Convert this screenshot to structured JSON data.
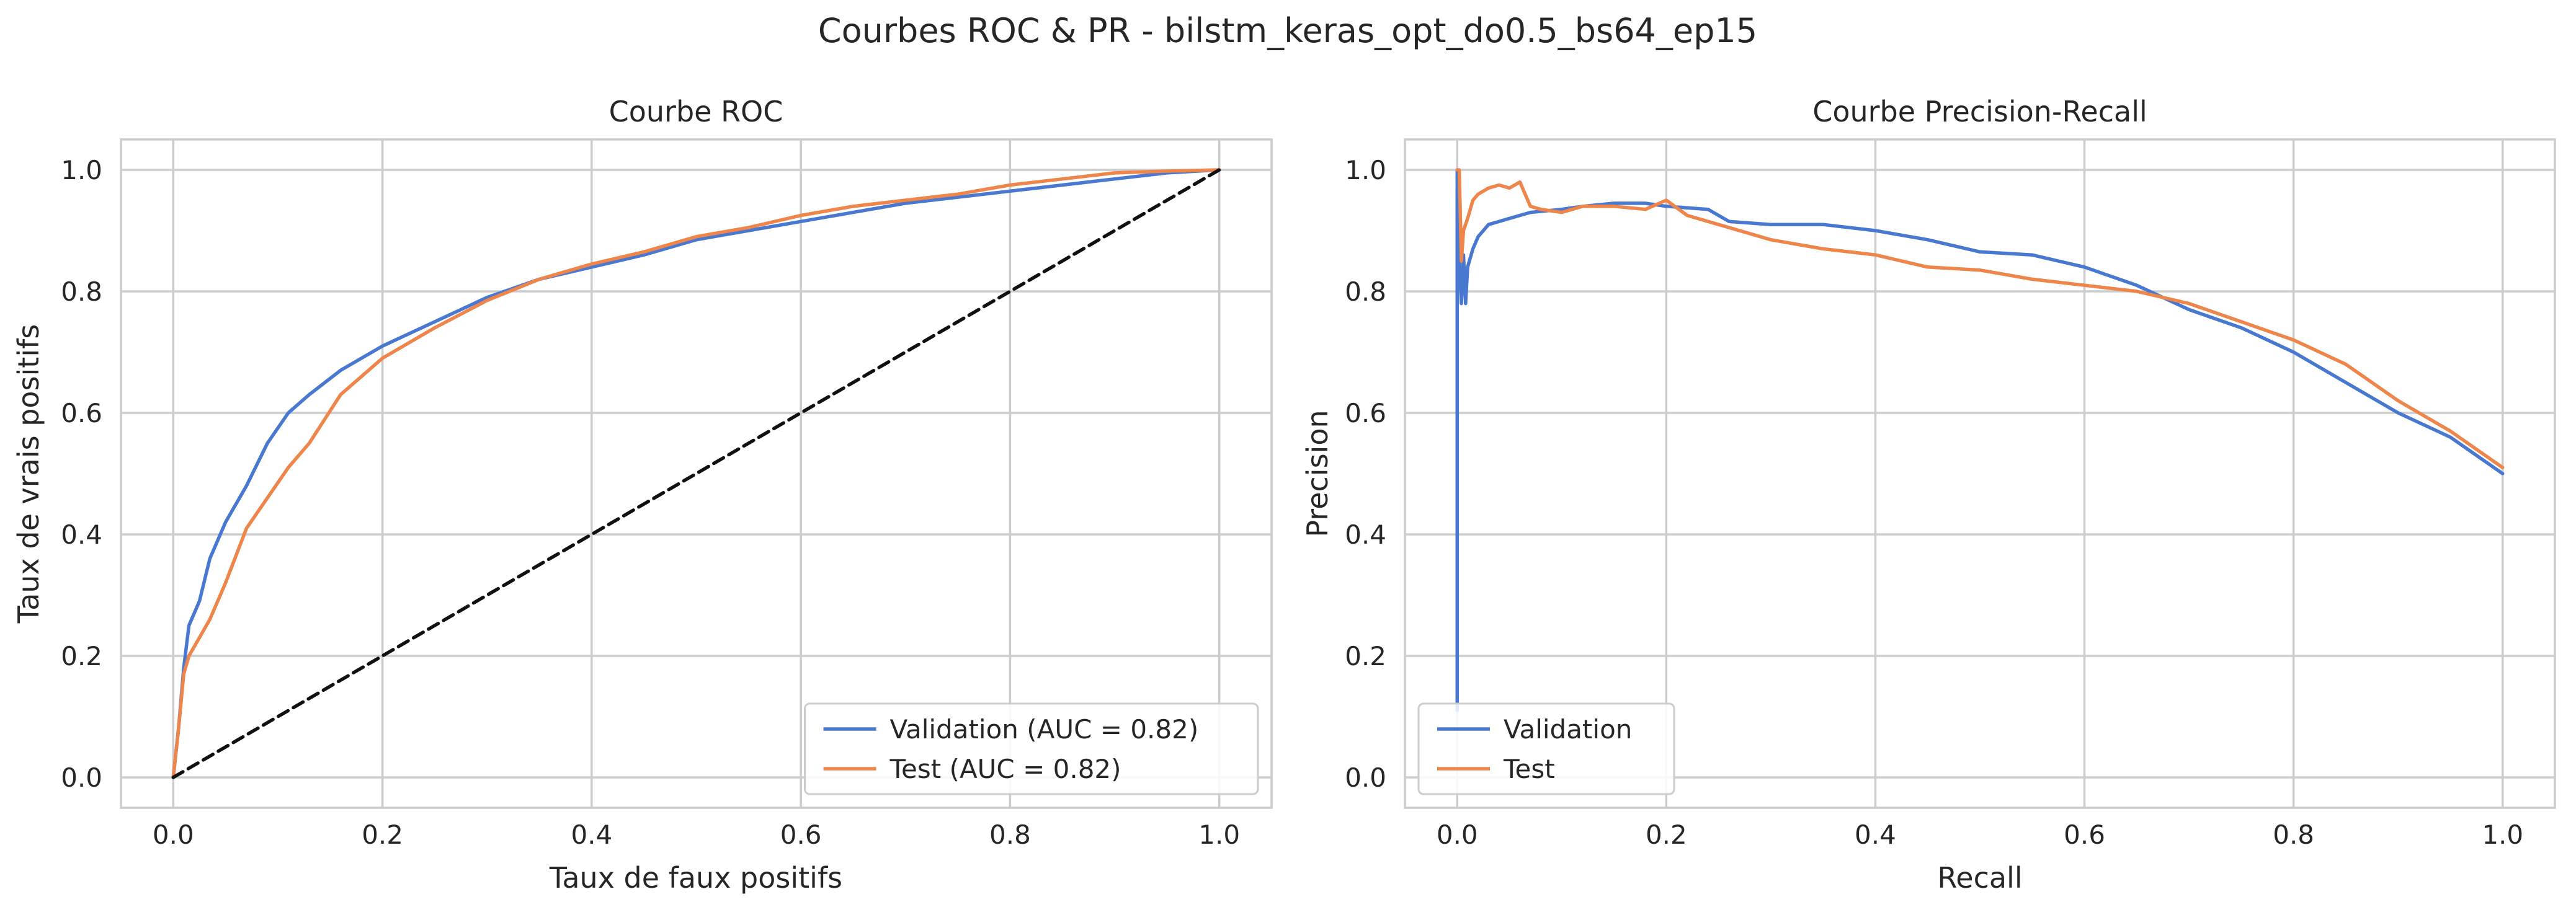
{
  "figure": {
    "suptitle": "Courbes ROC & PR - bilstm_keras_opt_do0.5_bs64_ep15"
  },
  "colors": {
    "validation": "#4878d0",
    "test": "#ee854a",
    "diagonal": "#111111",
    "grid": "#cccccc",
    "text": "#262626"
  },
  "chart_data": [
    {
      "type": "line",
      "title": "Courbe ROC",
      "xlabel": "Taux de faux positifs",
      "ylabel": "Taux de vrais positifs",
      "xlim": [
        -0.05,
        1.05
      ],
      "ylim": [
        -0.05,
        1.05
      ],
      "xticks": [
        0.0,
        0.2,
        0.4,
        0.6,
        0.8,
        1.0
      ],
      "yticks": [
        0.0,
        0.2,
        0.4,
        0.6,
        0.8,
        1.0
      ],
      "xtick_labels": [
        "0.0",
        "0.2",
        "0.4",
        "0.6",
        "0.8",
        "1.0"
      ],
      "ytick_labels": [
        "0.0",
        "0.2",
        "0.4",
        "0.6",
        "0.8",
        "1.0"
      ],
      "grid": true,
      "legend_position": "lower-right",
      "series": [
        {
          "name": "Validation (AUC = 0.82)",
          "color": "#4878d0",
          "x": [
            0.0,
            0.005,
            0.01,
            0.015,
            0.025,
            0.035,
            0.05,
            0.07,
            0.09,
            0.11,
            0.13,
            0.16,
            0.2,
            0.25,
            0.3,
            0.35,
            0.4,
            0.45,
            0.5,
            0.55,
            0.6,
            0.65,
            0.7,
            0.75,
            0.8,
            0.85,
            0.9,
            0.95,
            1.0
          ],
          "y": [
            0.0,
            0.08,
            0.18,
            0.25,
            0.29,
            0.36,
            0.42,
            0.48,
            0.55,
            0.6,
            0.63,
            0.67,
            0.71,
            0.75,
            0.79,
            0.82,
            0.84,
            0.86,
            0.885,
            0.9,
            0.915,
            0.93,
            0.945,
            0.955,
            0.965,
            0.975,
            0.985,
            0.995,
            1.0
          ]
        },
        {
          "name": "Test (AUC = 0.82)",
          "color": "#ee854a",
          "x": [
            0.0,
            0.005,
            0.01,
            0.015,
            0.025,
            0.035,
            0.05,
            0.07,
            0.09,
            0.11,
            0.13,
            0.16,
            0.2,
            0.25,
            0.3,
            0.35,
            0.4,
            0.45,
            0.5,
            0.55,
            0.6,
            0.65,
            0.7,
            0.75,
            0.8,
            0.85,
            0.9,
            0.95,
            1.0
          ],
          "y": [
            0.0,
            0.08,
            0.17,
            0.2,
            0.23,
            0.26,
            0.32,
            0.41,
            0.46,
            0.51,
            0.55,
            0.63,
            0.69,
            0.74,
            0.785,
            0.82,
            0.845,
            0.865,
            0.89,
            0.905,
            0.925,
            0.94,
            0.95,
            0.96,
            0.975,
            0.985,
            0.995,
            0.998,
            1.0
          ]
        },
        {
          "name": "",
          "color": "#111111",
          "dashed": true,
          "x": [
            0.0,
            1.0
          ],
          "y": [
            0.0,
            1.0
          ]
        }
      ]
    },
    {
      "type": "line",
      "title": "Courbe Precision-Recall",
      "xlabel": "Recall",
      "ylabel": "Precision",
      "xlim": [
        -0.05,
        1.05
      ],
      "ylim": [
        -0.05,
        1.05
      ],
      "xticks": [
        0.0,
        0.2,
        0.4,
        0.6,
        0.8,
        1.0
      ],
      "yticks": [
        0.0,
        0.2,
        0.4,
        0.6,
        0.8,
        1.0
      ],
      "xtick_labels": [
        "0.0",
        "0.2",
        "0.4",
        "0.6",
        "0.8",
        "1.0"
      ],
      "ytick_labels": [
        "0.0",
        "0.2",
        "0.4",
        "0.6",
        "0.8",
        "1.0"
      ],
      "grid": true,
      "legend_position": "lower-left",
      "series": [
        {
          "name": "Validation",
          "color": "#4878d0",
          "x": [
            0.0,
            0.0,
            0.002,
            0.004,
            0.006,
            0.008,
            0.01,
            0.015,
            0.02,
            0.03,
            0.05,
            0.07,
            0.1,
            0.12,
            0.15,
            0.18,
            0.2,
            0.24,
            0.26,
            0.3,
            0.35,
            0.4,
            0.45,
            0.5,
            0.55,
            0.6,
            0.65,
            0.7,
            0.75,
            0.8,
            0.85,
            0.9,
            0.95,
            1.0
          ],
          "y": [
            0.11,
            1.0,
            0.85,
            0.78,
            0.86,
            0.78,
            0.84,
            0.87,
            0.89,
            0.91,
            0.92,
            0.93,
            0.935,
            0.94,
            0.945,
            0.945,
            0.94,
            0.935,
            0.915,
            0.91,
            0.91,
            0.9,
            0.885,
            0.865,
            0.86,
            0.84,
            0.81,
            0.77,
            0.74,
            0.7,
            0.65,
            0.6,
            0.56,
            0.5
          ]
        },
        {
          "name": "Test",
          "color": "#ee854a",
          "x": [
            0.0,
            0.002,
            0.004,
            0.006,
            0.01,
            0.015,
            0.02,
            0.03,
            0.04,
            0.05,
            0.06,
            0.07,
            0.08,
            0.1,
            0.12,
            0.15,
            0.18,
            0.2,
            0.22,
            0.25,
            0.3,
            0.35,
            0.4,
            0.45,
            0.5,
            0.55,
            0.6,
            0.65,
            0.7,
            0.75,
            0.8,
            0.85,
            0.9,
            0.95,
            1.0
          ],
          "y": [
            1.0,
            1.0,
            0.85,
            0.9,
            0.92,
            0.95,
            0.96,
            0.97,
            0.975,
            0.97,
            0.98,
            0.94,
            0.935,
            0.93,
            0.94,
            0.94,
            0.935,
            0.95,
            0.925,
            0.91,
            0.885,
            0.87,
            0.86,
            0.84,
            0.835,
            0.82,
            0.81,
            0.8,
            0.78,
            0.75,
            0.72,
            0.68,
            0.62,
            0.57,
            0.51
          ]
        }
      ]
    }
  ]
}
